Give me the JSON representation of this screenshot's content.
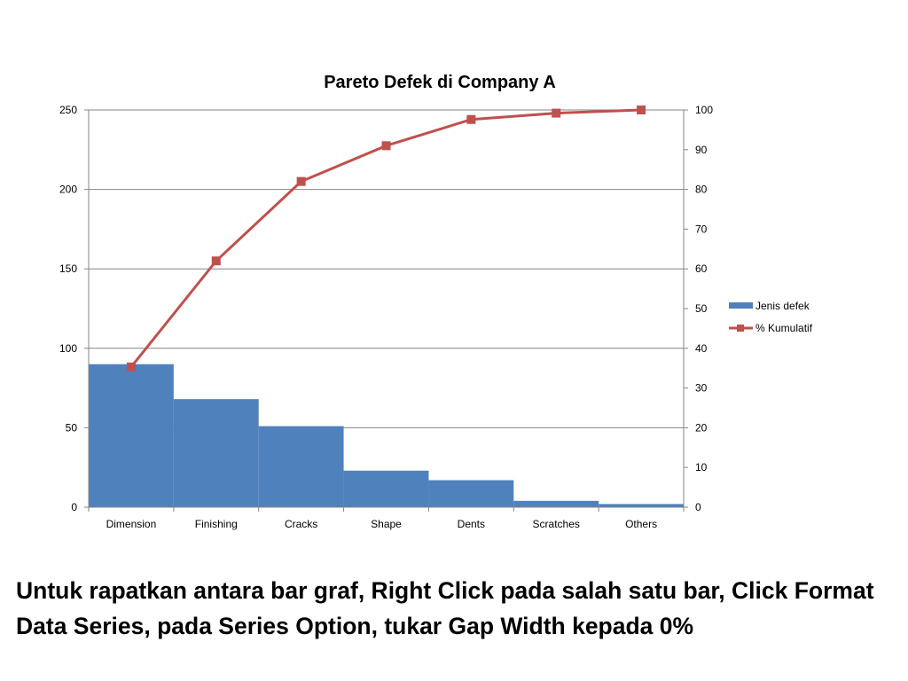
{
  "colors": {
    "bar": "#4F81BD",
    "line": "#C0504D",
    "grid": "#868686",
    "axis": "#868686"
  },
  "chart_data": {
    "type": "bar",
    "title": "Pareto Defek di Company A",
    "categories": [
      "Dimension",
      "Finishing",
      "Cracks",
      "Shape",
      "Dents",
      "Scratches",
      "Others"
    ],
    "series": [
      {
        "name": "Jenis defek",
        "type": "bar",
        "axis": "left",
        "color": "#4F81BD",
        "values": [
          90,
          68,
          51,
          23,
          17,
          4,
          2
        ]
      },
      {
        "name": "% Kumulatif",
        "type": "line",
        "axis": "right",
        "color": "#C0504D",
        "marker": "square",
        "values": [
          35.3,
          62.0,
          82.0,
          91.0,
          97.6,
          99.2,
          100
        ]
      }
    ],
    "y_left": {
      "min": 0,
      "max": 250,
      "ticks": [
        "0",
        "50",
        "100",
        "150",
        "200",
        "250"
      ],
      "grid": true
    },
    "y_right": {
      "min": 0,
      "max": 100,
      "ticks": [
        "0",
        "10",
        "20",
        "30",
        "40",
        "50",
        "60",
        "70",
        "80",
        "90",
        "100"
      ]
    },
    "gap_width": 0,
    "legend": "right"
  },
  "caption": "Untuk rapatkan antara bar graf, Right Click pada salah satu bar, Click Format Data Series, pada Series Option, tukar Gap Width kepada 0%"
}
